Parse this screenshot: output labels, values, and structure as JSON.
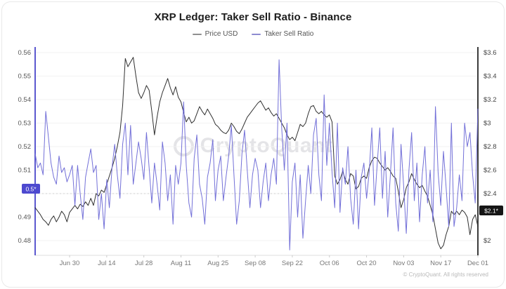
{
  "card": {
    "watermark": "CryptoQuant",
    "footer": "© CryptoQuant. All rights reserved"
  },
  "chart_data": {
    "type": "line",
    "title": "XRP Ledger: Taker Sell Ratio - Binance",
    "legend_position": "top-center",
    "grid": "horizontal-only",
    "x_tick_labels": [
      "Jun 30",
      "Jul 14",
      "Jul 28",
      "Aug 11",
      "Aug 25",
      "Sep 08",
      "Sep 22",
      "Oct 06",
      "Oct 20",
      "Nov 03",
      "Nov 17",
      "Dec 01"
    ],
    "x_tick_indices": [
      13,
      27,
      41,
      55,
      69,
      83,
      97,
      111,
      125,
      139,
      153,
      167
    ],
    "left_axis": {
      "name": "Taker Sell Ratio",
      "min": 0.48,
      "max": 0.56,
      "ticks": [
        0.48,
        0.49,
        0.5,
        0.51,
        0.52,
        0.53,
        0.54,
        0.55,
        0.56
      ],
      "tick_labels": [
        "0.48",
        "0.49",
        "",
        "0.51",
        "0.52",
        "0.53",
        "0.54",
        "0.55",
        "0.56"
      ],
      "reference_line": 0.5,
      "axis_color": "#5b58cf",
      "badge": {
        "text": "0.5*",
        "color": "#4d49cf",
        "text_color": "#ffffff"
      }
    },
    "right_axis": {
      "name": "Price USD",
      "min": 2.0,
      "max": 3.6,
      "ticks": [
        2.0,
        2.2,
        2.4,
        2.6,
        2.8,
        3.0,
        3.2,
        3.4,
        3.6
      ],
      "tick_labels": [
        "$2",
        "",
        "$2.4",
        "$2.6",
        "$2.8",
        "$3",
        "$3.2",
        "$3.4",
        "$3.6"
      ],
      "axis_color": "#3c3c3c",
      "badge": {
        "text": "$2.1*",
        "color": "#151515",
        "text_color": "#ffffff"
      }
    },
    "grid_color": "#f2f2f2",
    "reference_line_color": "#cfcfcf",
    "series": [
      {
        "name": "Price USD",
        "axis": "right",
        "color": "#303030",
        "legend_marker_color": "#8f8f8f",
        "values": [
          2.28,
          2.25,
          2.22,
          2.18,
          2.16,
          2.13,
          2.18,
          2.21,
          2.16,
          2.2,
          2.25,
          2.22,
          2.16,
          2.24,
          2.27,
          2.3,
          2.27,
          2.31,
          2.29,
          2.33,
          2.3,
          2.36,
          2.3,
          2.4,
          2.38,
          2.43,
          2.41,
          2.48,
          2.55,
          2.62,
          2.7,
          2.8,
          2.92,
          3.15,
          3.55,
          3.48,
          3.52,
          3.56,
          3.4,
          3.26,
          3.21,
          3.26,
          3.32,
          3.28,
          3.1,
          2.9,
          3.05,
          3.18,
          3.26,
          3.32,
          3.38,
          3.3,
          3.24,
          3.31,
          3.22,
          3.18,
          3.09,
          3.01,
          3.05,
          3.0,
          3.02,
          3.08,
          3.14,
          3.1,
          3.07,
          3.12,
          3.08,
          3.04,
          2.99,
          2.97,
          2.94,
          2.92,
          2.91,
          2.94,
          3.0,
          2.97,
          2.93,
          2.91,
          2.95,
          3.0,
          3.05,
          3.08,
          3.11,
          3.14,
          3.17,
          3.19,
          3.15,
          3.11,
          3.13,
          3.09,
          3.06,
          3.08,
          3.04,
          3.0,
          2.96,
          2.9,
          2.86,
          2.88,
          2.85,
          2.92,
          2.99,
          2.97,
          3.0,
          3.08,
          3.14,
          3.15,
          3.1,
          3.08,
          3.1,
          3.07,
          3.05,
          3.07,
          3.01,
          2.55,
          2.48,
          2.52,
          2.59,
          2.52,
          2.48,
          2.57,
          2.55,
          2.44,
          2.46,
          2.53,
          2.55,
          2.53,
          2.62,
          2.68,
          2.71,
          2.7,
          2.66,
          2.63,
          2.6,
          2.62,
          2.59,
          2.55,
          2.53,
          2.42,
          2.28,
          2.35,
          2.45,
          2.5,
          2.57,
          2.52,
          2.48,
          2.45,
          2.47,
          2.42,
          2.38,
          2.3,
          2.22,
          2.1,
          1.98,
          1.93,
          1.96,
          2.05,
          2.12,
          2.25,
          2.22,
          2.25,
          2.22,
          2.26,
          2.24,
          2.2,
          2.05,
          2.18,
          2.22,
          2.12
        ]
      },
      {
        "name": "Taker Sell Ratio",
        "axis": "left",
        "color": "#7370d8",
        "legend_marker_color": "#8d8bd0",
        "values": [
          0.517,
          0.511,
          0.513,
          0.508,
          0.535,
          0.524,
          0.513,
          0.507,
          0.504,
          0.516,
          0.509,
          0.511,
          0.505,
          0.508,
          0.512,
          0.495,
          0.512,
          0.5,
          0.489,
          0.507,
          0.513,
          0.519,
          0.509,
          0.512,
          0.489,
          0.5,
          0.485,
          0.506,
          0.494,
          0.511,
          0.521,
          0.508,
          0.498,
          0.521,
          0.53,
          0.508,
          0.529,
          0.504,
          0.513,
          0.522,
          0.515,
          0.506,
          0.526,
          0.511,
          0.496,
          0.513,
          0.504,
          0.493,
          0.522,
          0.513,
          0.497,
          0.508,
          0.487,
          0.512,
          0.504,
          0.513,
          0.539,
          0.512,
          0.496,
          0.49,
          0.515,
          0.525,
          0.504,
          0.498,
          0.487,
          0.507,
          0.513,
          0.523,
          0.497,
          0.51,
          0.516,
          0.497,
          0.507,
          0.516,
          0.529,
          0.508,
          0.487,
          0.497,
          0.517,
          0.527,
          0.51,
          0.494,
          0.508,
          0.515,
          0.51,
          0.494,
          0.505,
          0.513,
          0.497,
          0.508,
          0.515,
          0.504,
          0.557,
          0.528,
          0.51,
          0.53,
          0.476,
          0.505,
          0.513,
          0.49,
          0.508,
          0.481,
          0.497,
          0.512,
          0.5,
          0.525,
          0.532,
          0.508,
          0.497,
          0.542,
          0.512,
          0.53,
          0.509,
          0.494,
          0.53,
          0.492,
          0.511,
          0.504,
          0.52,
          0.498,
          0.487,
          0.51,
          0.485,
          0.507,
          0.513,
          0.498,
          0.509,
          0.528,
          0.495,
          0.512,
          0.528,
          0.498,
          0.518,
          0.49,
          0.508,
          0.528,
          0.496,
          0.484,
          0.521,
          0.503,
          0.483,
          0.51,
          0.526,
          0.497,
          0.513,
          0.488,
          0.508,
          0.52,
          0.496,
          0.51,
          0.488,
          0.537,
          0.509,
          0.495,
          0.518,
          0.503,
          0.486,
          0.53,
          0.486,
          0.494,
          0.508,
          0.497,
          0.53,
          0.52,
          0.526,
          0.508,
          0.496,
          0.536
        ]
      }
    ]
  }
}
